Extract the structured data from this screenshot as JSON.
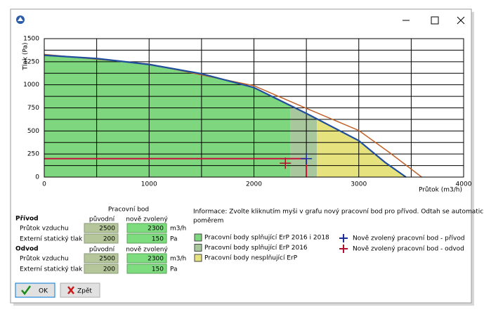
{
  "chart_data": {
    "type": "area",
    "xlabel": "Průtok (m3/h)",
    "ylabel": "Tlak (Pa)",
    "xlim": [
      0,
      4000
    ],
    "ylim": [
      0,
      1500
    ],
    "xticks": [
      0,
      1000,
      2000,
      3000,
      4000
    ],
    "yticks": [
      0,
      250,
      500,
      750,
      1000,
      1250,
      1500
    ],
    "xgrid": [
      500,
      1500,
      2500,
      3500
    ],
    "ygrid": [
      125,
      375,
      625,
      875,
      1125,
      1375
    ],
    "series": [
      {
        "color": "#1f4e9c",
        "x": [
          0,
          500,
          1000,
          1500,
          2000,
          2500,
          3000,
          3250,
          3450
        ],
        "values": [
          1320,
          1285,
          1220,
          1120,
          970,
          690,
          395,
          160,
          0
        ]
      },
      {
        "color": "#c0622a",
        "x": [
          0,
          1000,
          2000,
          2500,
          3000,
          3300,
          3600
        ],
        "values": [
          1330,
          1225,
          990,
          745,
          505,
          260,
          0
        ]
      }
    ],
    "regions": [
      {
        "name": "Pracovní body splňující ErP 2016 i 2018",
        "color": "#7ed67e",
        "x": [
          0,
          2350
        ]
      },
      {
        "name": "Pracovní body splňující ErP 2016",
        "color": "#a9c79c",
        "x": [
          2350,
          2600
        ]
      },
      {
        "name": "Pracovní body nesplňující ErP",
        "color": "#e6e27e",
        "x": [
          2600,
          3450
        ]
      }
    ],
    "marker_legend": [
      {
        "label": "Nově zvolený pracovní bod - přívod",
        "color": "#1a2f9c"
      },
      {
        "label": "Nově zvolený pracovní bod - odvod",
        "color": "#b0102a"
      }
    ]
  },
  "form": {
    "title": "Pracovní bod",
    "groups": [
      {
        "title": "Přívod",
        "col_original": "původní",
        "col_new": "nově zvolený",
        "rows": [
          {
            "label": "Průtok vzduchu",
            "original": 2500,
            "new": 2300,
            "unit": "m3/h"
          },
          {
            "label": "Externí statický tlak",
            "original": 200,
            "new": 150,
            "unit": "Pa"
          }
        ]
      },
      {
        "title": "Odvod",
        "col_original": "původní",
        "col_new": "nově zvolený",
        "rows": [
          {
            "label": "Průtok vzduchu",
            "original": 2500,
            "new": 2300,
            "unit": "m3/h"
          },
          {
            "label": "Externí statický tlak",
            "original": 200,
            "new": 150,
            "unit": "Pa"
          }
        ]
      }
    ]
  },
  "info": [
    "Informace: Zvolte kliknutím myši v grafu nový pracovní bod pro přívod. Odtah se automaticky dopočítá",
    "poměrem"
  ],
  "buttons": [
    "OK",
    "Zpět"
  ]
}
